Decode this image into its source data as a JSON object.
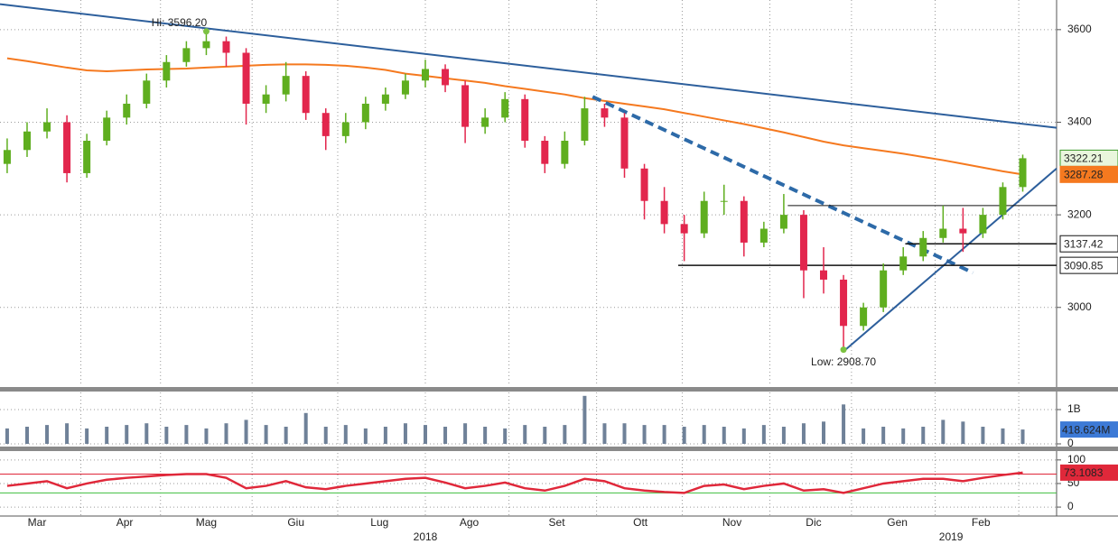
{
  "chart_data": [
    {
      "type": "candlestick",
      "x": [
        0,
        1,
        2,
        3,
        4,
        5,
        6,
        7,
        8,
        9,
        10,
        11,
        12,
        13,
        14,
        15,
        16,
        17,
        18,
        19,
        20,
        21,
        22,
        23,
        24,
        25,
        26,
        27,
        28,
        29,
        30,
        31,
        32,
        33,
        34,
        35,
        36,
        37,
        38,
        39,
        40,
        41,
        42,
        43,
        44,
        45,
        46,
        47,
        48,
        49,
        50,
        51
      ],
      "open": [
        3310,
        3340,
        3380,
        3400,
        3290,
        3360,
        3410,
        3440,
        3490,
        3530,
        3560,
        3575,
        3550,
        3440,
        3460,
        3500,
        3420,
        3370,
        3400,
        3440,
        3460,
        3490,
        3515,
        3480,
        3390,
        3410,
        3450,
        3360,
        3310,
        3360,
        3430,
        3410,
        3300,
        3230,
        3180,
        3160,
        3230,
        3230,
        3140,
        3170,
        3200,
        3080,
        3060,
        2960,
        3000,
        3080,
        3110,
        3150,
        3170,
        3160,
        3200,
        3260
      ],
      "high": [
        3365,
        3400,
        3430,
        3415,
        3375,
        3425,
        3460,
        3505,
        3545,
        3575,
        3596.2,
        3585,
        3560,
        3480,
        3530,
        3510,
        3430,
        3420,
        3455,
        3475,
        3505,
        3535,
        3525,
        3490,
        3430,
        3465,
        3460,
        3370,
        3380,
        3455,
        3440,
        3420,
        3310,
        3260,
        3200,
        3250,
        3265,
        3240,
        3185,
        3245,
        3210,
        3130,
        3070,
        3010,
        3095,
        3130,
        3165,
        3220,
        3215,
        3215,
        3270,
        3330
      ],
      "low": [
        3290,
        3325,
        3365,
        3270,
        3280,
        3350,
        3395,
        3430,
        3475,
        3520,
        3545,
        3520,
        3395,
        3420,
        3445,
        3405,
        3340,
        3355,
        3385,
        3425,
        3450,
        3475,
        3465,
        3355,
        3375,
        3400,
        3345,
        3290,
        3300,
        3350,
        3390,
        3280,
        3190,
        3160,
        3100,
        3150,
        3200,
        3110,
        3130,
        3160,
        3020,
        3030,
        2908.7,
        2950,
        2990,
        3070,
        3100,
        3140,
        3120,
        3150,
        3190,
        3250
      ],
      "close": [
        3340,
        3380,
        3400,
        3290,
        3360,
        3410,
        3440,
        3490,
        3530,
        3560,
        3575,
        3550,
        3440,
        3460,
        3500,
        3420,
        3370,
        3400,
        3440,
        3460,
        3490,
        3515,
        3480,
        3390,
        3410,
        3450,
        3360,
        3310,
        3360,
        3430,
        3410,
        3300,
        3230,
        3180,
        3160,
        3230,
        3230,
        3140,
        3170,
        3200,
        3080,
        3060,
        2960,
        3000,
        3080,
        3110,
        3150,
        3170,
        3160,
        3200,
        3260,
        3322.21
      ],
      "up_color": "#5fae1f",
      "down_color": "#e2264d",
      "close_box_color": "#e9f6dc",
      "close_box_border": "#3c9a2a",
      "lines": [
        {
          "color": "#f5791f",
          "values": [
            3538,
            3532,
            3525,
            3518,
            3512,
            3510,
            3512,
            3514,
            3515,
            3516,
            3518,
            3520,
            3522,
            3524,
            3525,
            3525,
            3524,
            3522,
            3518,
            3513,
            3505,
            3500,
            3495,
            3490,
            3485,
            3478,
            3472,
            3466,
            3460,
            3452,
            3446,
            3440,
            3434,
            3428,
            3420,
            3412,
            3404,
            3396,
            3387,
            3378,
            3368,
            3358,
            3350,
            3344,
            3338,
            3332,
            3325,
            3318,
            3310,
            3302,
            3294,
            3287.28
          ]
        }
      ],
      "trendlines": [
        {
          "color": "#2d5f9c",
          "dash": false,
          "x": [
            -0.36,
            52.7
          ],
          "y": [
            3655,
            3388
          ]
        },
        {
          "color": "#2d6aa8",
          "dash": true,
          "x": [
            29.4,
            48.5
          ],
          "y": [
            3455,
            3075
          ]
        },
        {
          "color": "#2d5f9c",
          "dash": false,
          "x": [
            42.1,
            52.7
          ],
          "y": [
            2908.7,
            3300
          ]
        }
      ],
      "levels": [
        {
          "value": 3220,
          "from": 39.2
        }
      ],
      "labeled_levels": [
        {
          "value": 3137.42,
          "from": 45.1
        },
        {
          "value": 3090.85,
          "from": 33.7
        }
      ],
      "annotations": [
        {
          "text": "Hi: 3596.20",
          "x": 10,
          "y": 3596.2,
          "color": "#7cc242"
        },
        {
          "text": "Low: 2908.70",
          "x": 42,
          "y": 2908.7,
          "color": "#7cc242"
        }
      ],
      "xlim": [
        -0.36,
        52.7
      ],
      "ylim": [
        2830,
        3664
      ],
      "yticks": [
        3000,
        3200,
        3400,
        3600
      ],
      "grid": true
    },
    {
      "type": "bar",
      "values": [
        0.45,
        0.5,
        0.55,
        0.6,
        0.45,
        0.5,
        0.55,
        0.6,
        0.5,
        0.55,
        0.45,
        0.6,
        0.7,
        0.55,
        0.5,
        0.9,
        0.5,
        0.55,
        0.45,
        0.5,
        0.6,
        0.55,
        0.5,
        0.6,
        0.5,
        0.45,
        0.55,
        0.5,
        0.55,
        1.4,
        0.6,
        0.6,
        0.55,
        0.55,
        0.5,
        0.55,
        0.5,
        0.45,
        0.55,
        0.5,
        0.6,
        0.65,
        1.15,
        0.45,
        0.5,
        0.45,
        0.5,
        0.7,
        0.65,
        0.5,
        0.45,
        0.418624
      ],
      "value_labels": [
        null,
        null,
        null,
        null,
        null,
        null,
        null,
        null,
        null,
        null,
        null,
        null,
        null,
        null,
        null,
        null,
        null,
        null,
        null,
        null,
        null,
        null,
        null,
        null,
        null,
        null,
        null,
        null,
        null,
        null,
        null,
        null,
        null,
        null,
        null,
        null,
        null,
        null,
        null,
        null,
        null,
        null,
        null,
        null,
        null,
        null,
        null,
        null,
        null,
        null,
        null,
        "418.624M"
      ],
      "color": "#6f8198",
      "label_color": "#3d7ad6",
      "xlim": [
        -0.36,
        52.7
      ],
      "ylim": [
        0,
        1.5
      ],
      "yticks": [
        0,
        {
          "value": 1,
          "label": "1B"
        }
      ],
      "grid": true
    },
    {
      "type": "line",
      "values": [
        45,
        50,
        55,
        40,
        50,
        58,
        62,
        65,
        68,
        70,
        70,
        62,
        40,
        45,
        55,
        42,
        38,
        45,
        50,
        55,
        60,
        62,
        52,
        40,
        45,
        52,
        40,
        35,
        45,
        60,
        55,
        40,
        35,
        32,
        30,
        45,
        48,
        38,
        45,
        50,
        35,
        38,
        30,
        40,
        50,
        55,
        60,
        60,
        55,
        62,
        68,
        73.1083
      ],
      "color": "#e0283a",
      "levels": [
        {
          "value": 70,
          "color": "#e0283a"
        },
        {
          "value": 30,
          "color": "#3fbf3f"
        }
      ],
      "xlim": [
        -0.36,
        52.7
      ],
      "ylim": [
        -19,
        115
      ],
      "yticks": [
        0,
        50,
        100
      ],
      "grid": true,
      "xticks": [
        {
          "value": 1.5,
          "label": "Mar"
        },
        {
          "value": 5.9,
          "label": "Apr"
        },
        {
          "value": 10,
          "label": "Mag"
        },
        {
          "value": 14.5,
          "label": "Giu"
        },
        {
          "value": 18.7,
          "label": "Lug"
        },
        {
          "value": 23.2,
          "label": "Ago"
        },
        {
          "value": 27.6,
          "label": "Set"
        },
        {
          "value": 31.8,
          "label": "Ott"
        },
        {
          "value": 36.4,
          "label": "Nov"
        },
        {
          "value": 40.5,
          "label": "Dic"
        },
        {
          "value": 44.7,
          "label": "Gen"
        },
        {
          "value": 48.9,
          "label": "Feb"
        }
      ],
      "x_grid": [
        3.7,
        7.7,
        12.3,
        16.6,
        21,
        25.2,
        29.6,
        33.9,
        38.3,
        42.4,
        46.6,
        50.8
      ],
      "year_ticks": [
        {
          "value": 21,
          "label": "2018"
        },
        {
          "value": 47.4,
          "label": "2019"
        }
      ]
    }
  ]
}
